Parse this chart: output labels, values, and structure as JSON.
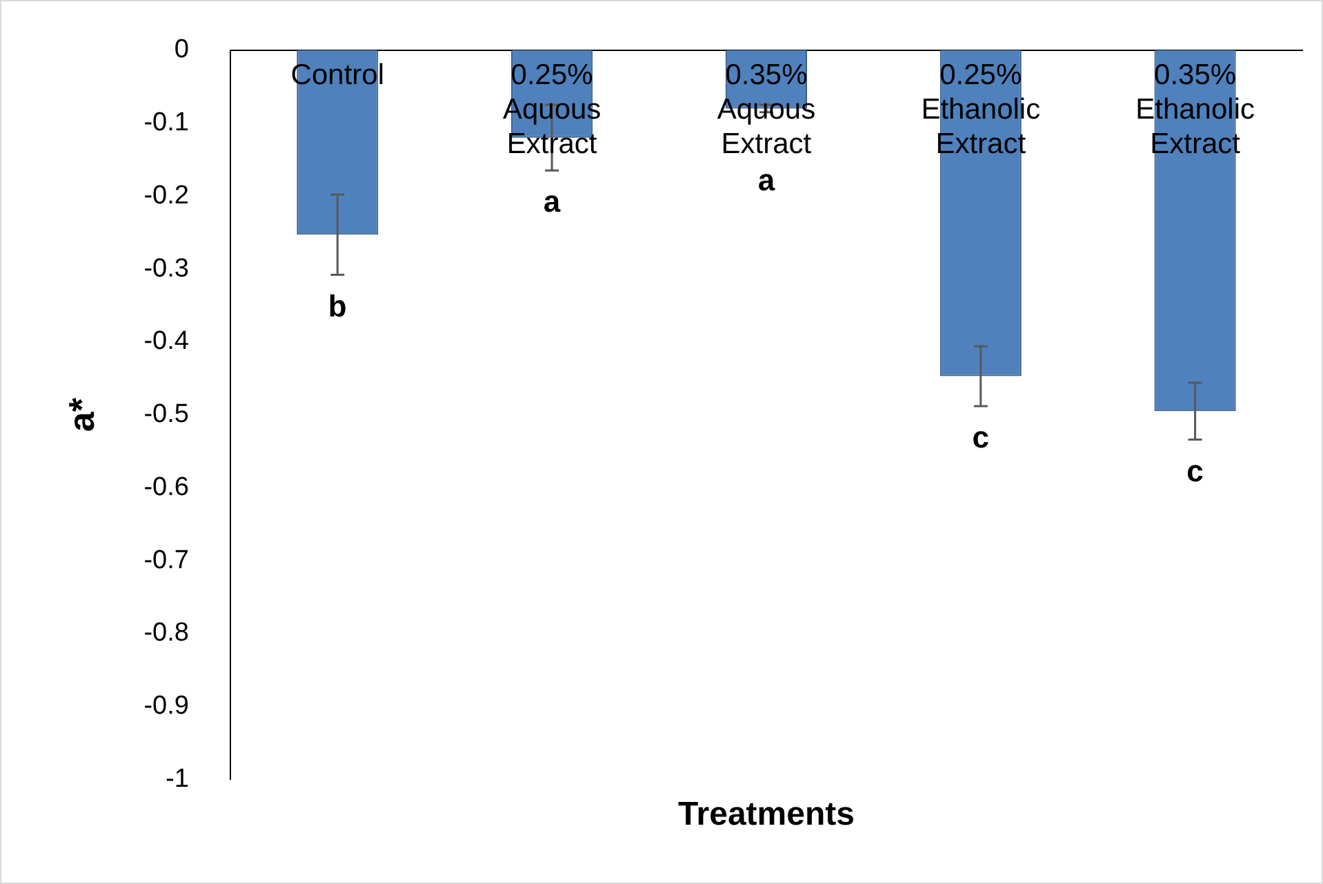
{
  "chart_data": {
    "type": "bar",
    "xlabel": "Treatments",
    "ylabel": "a*",
    "categories": [
      "Control",
      "0.25% Aquous Extract",
      "0.35% Aquous Extract",
      "0.25% Ethanolic Extract",
      "0.35% Ethanolic Extract"
    ],
    "values": [
      -0.253,
      -0.12,
      -0.08,
      -0.447,
      -0.495
    ],
    "errors": [
      0.055,
      0.045,
      0.005,
      0.041,
      0.039
    ],
    "color": "#4f81bd",
    "ylim": [
      -1,
      0
    ],
    "yticks": [
      -1,
      -0.9,
      -0.8,
      -0.7,
      -0.6,
      -0.5,
      -0.4,
      -0.3,
      -0.2,
      -0.1,
      0
    ],
    "grid": false,
    "legend": false,
    "annotations": [
      {
        "text": "b",
        "x": "Control",
        "y": -0.253
      },
      {
        "text": "a",
        "x": "0.25% Aquous Extract",
        "y": -0.12
      },
      {
        "text": "a",
        "x": "0.35% Aquous Extract",
        "y": -0.08
      },
      {
        "text": "c",
        "x": "0.25% Ethanolic Extract",
        "y": -0.447
      },
      {
        "text": "c",
        "x": "0.35% Ethanolic Extract",
        "y": -0.495
      }
    ]
  }
}
